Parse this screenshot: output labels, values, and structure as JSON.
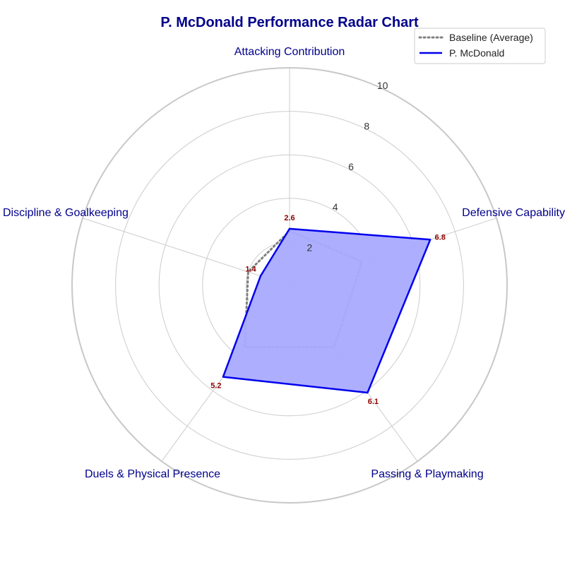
{
  "chart_data": {
    "type": "radar",
    "title": "P. McDonald Performance Radar Chart",
    "categories": [
      "Attacking Contribution",
      "Defensive Capability",
      "Passing & Playmaking",
      "Duels & Physical Presence",
      "Discipline & Goalkeeping"
    ],
    "rmax": 10,
    "rticks": [
      "2",
      "4",
      "6",
      "8",
      "10"
    ],
    "rtick_values": [
      2,
      4,
      6,
      8,
      10
    ],
    "grid": true,
    "legend_position": "top-right",
    "series": [
      {
        "name": "Baseline (Average)",
        "values": [
          2.5,
          3.5,
          3.5,
          3.5,
          2.0
        ],
        "color": "#808080",
        "style": "dotted",
        "fill": false
      },
      {
        "name": "P. McDonald",
        "values": [
          2.6,
          6.8,
          6.1,
          5.2,
          1.4
        ],
        "labels": [
          "2.6",
          "6.8",
          "6.1",
          "5.2",
          "1.4"
        ],
        "color": "#0000ee",
        "style": "solid",
        "fill": true,
        "fill_color": "#aaaaff"
      }
    ]
  }
}
